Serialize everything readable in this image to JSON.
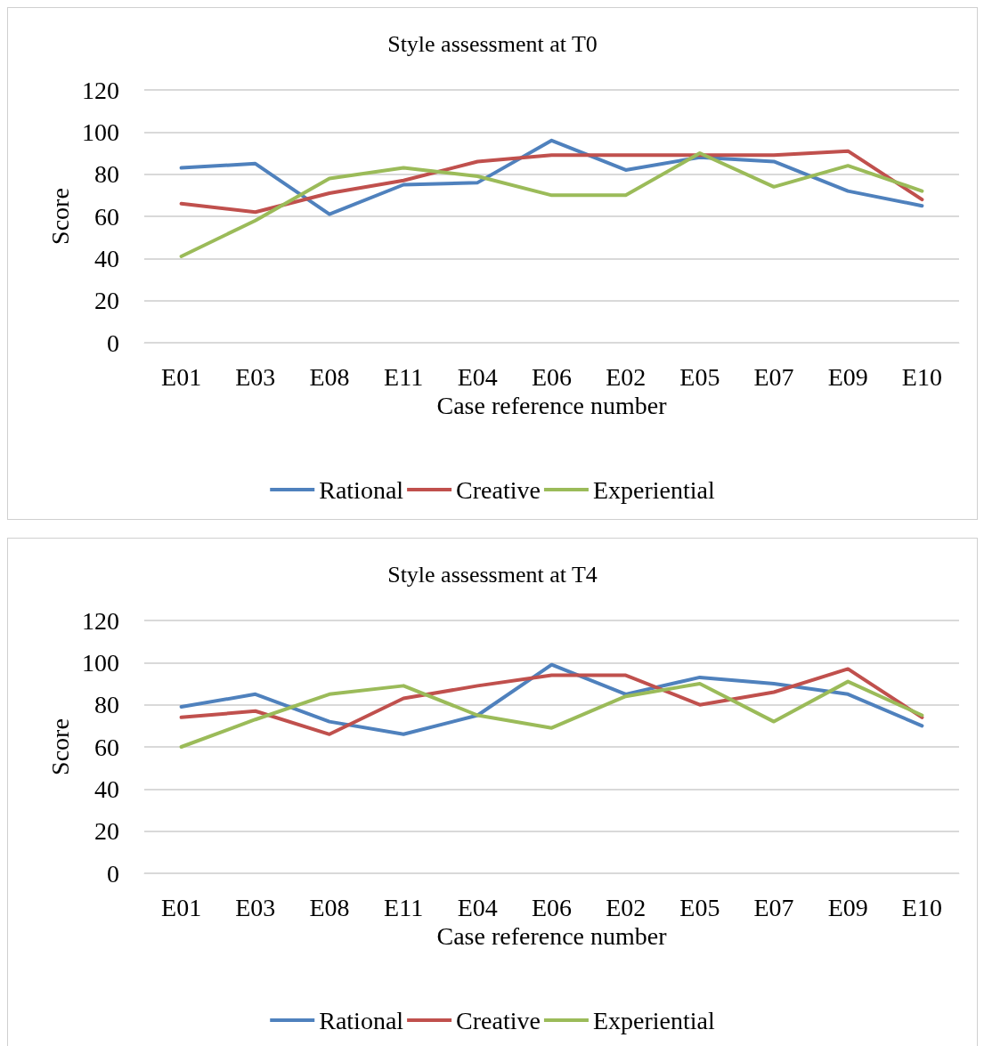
{
  "chart_data": [
    {
      "type": "line",
      "title": "Style assessment at T0",
      "xlabel": "Case reference number",
      "ylabel": "Score",
      "categories": [
        "E01",
        "E03",
        "E08",
        "E11",
        "E04",
        "E06",
        "E02",
        "E05",
        "E07",
        "E09",
        "E10"
      ],
      "series": [
        {
          "name": "Rational",
          "color": "#4f81bd",
          "values": [
            83,
            85,
            61,
            75,
            76,
            96,
            82,
            88,
            86,
            72,
            65
          ]
        },
        {
          "name": "Creative",
          "color": "#c0504d",
          "values": [
            66,
            62,
            71,
            77,
            86,
            89,
            89,
            89,
            89,
            91,
            68
          ]
        },
        {
          "name": "Experiential",
          "color": "#9bbb59",
          "values": [
            41,
            58,
            78,
            83,
            79,
            70,
            70,
            90,
            74,
            84,
            72
          ]
        }
      ],
      "ylim": [
        0,
        120
      ],
      "yticks": [
        0,
        20,
        40,
        60,
        80,
        100,
        120
      ],
      "grid": "y",
      "legend": "bottom",
      "marker": "none",
      "line_style": "solid"
    },
    {
      "type": "line",
      "title": "Style assessment at T4",
      "xlabel": "Case reference number",
      "ylabel": "Score",
      "categories": [
        "E01",
        "E03",
        "E08",
        "E11",
        "E04",
        "E06",
        "E02",
        "E05",
        "E07",
        "E09",
        "E10"
      ],
      "series": [
        {
          "name": "Rational",
          "color": "#4f81bd",
          "values": [
            79,
            85,
            72,
            66,
            75,
            99,
            85,
            93,
            90,
            85,
            70
          ]
        },
        {
          "name": "Creative",
          "color": "#c0504d",
          "values": [
            74,
            77,
            66,
            83,
            89,
            94,
            94,
            80,
            86,
            97,
            74
          ]
        },
        {
          "name": "Experiential",
          "color": "#9bbb59",
          "values": [
            60,
            73,
            85,
            89,
            75,
            69,
            84,
            90,
            72,
            91,
            75
          ]
        }
      ],
      "ylim": [
        0,
        120
      ],
      "yticks": [
        0,
        20,
        40,
        60,
        80,
        100,
        120
      ],
      "grid": "y",
      "legend": "bottom",
      "marker": "none",
      "line_style": "solid"
    }
  ]
}
